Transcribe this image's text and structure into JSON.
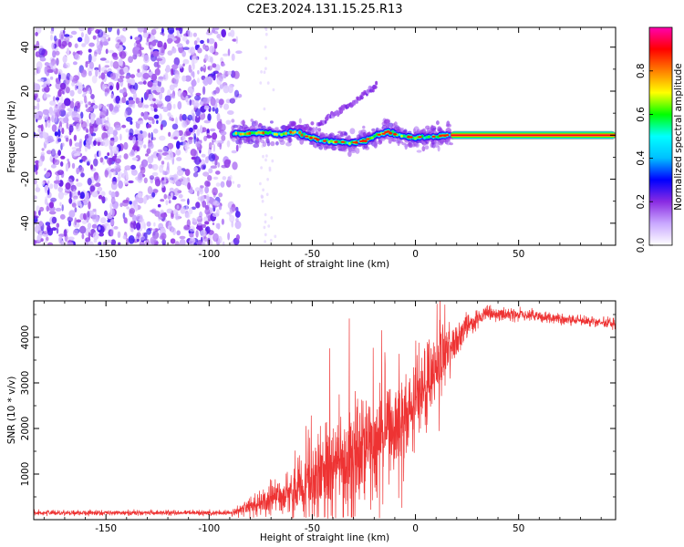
{
  "figure_title": "C2E3.2024.131.15.25.R13",
  "chart_data": [
    {
      "type": "heatmap",
      "xlabel": "Height of straight line (km)",
      "ylabel": "Frequency (Hz)",
      "xlim": [
        -185,
        97
      ],
      "ylim": [
        -50,
        49
      ],
      "xticks": [
        -150,
        -100,
        -50,
        0,
        50
      ],
      "yticks": [
        -40,
        -20,
        0,
        20,
        40
      ],
      "colorbar": {
        "label": "Normalized spectral amplitude",
        "range": [
          0,
          1
        ],
        "ticks": [
          0.0,
          0.2,
          0.4,
          0.6,
          0.8
        ],
        "tick_labels": [
          "0.0",
          "0.2",
          "0.4",
          "0.6",
          "0.8"
        ],
        "colors": [
          "#ffffff",
          "#c9a8ff",
          "#8a2be2",
          "#0000ff",
          "#00bfff",
          "#00ffff",
          "#00ff00",
          "#ffff00",
          "#ff7f00",
          "#ff0000",
          "#ff00b0"
        ]
      },
      "features": {
        "noise_region_x": [
          -185,
          -85
        ],
        "main_line": [
          {
            "x": -88,
            "f": 0.5
          },
          {
            "x": -80,
            "f": 0.8
          },
          {
            "x": -72,
            "f": 1.2
          },
          {
            "x": -66,
            "f": 0.3
          },
          {
            "x": -58,
            "f": 1.5
          },
          {
            "x": -52,
            "f": -0.5
          },
          {
            "x": -45,
            "f": -2.5
          },
          {
            "x": -38,
            "f": -3.2
          },
          {
            "x": -30,
            "f": -3.5
          },
          {
            "x": -24,
            "f": -2.2
          },
          {
            "x": -18,
            "f": 0.5
          },
          {
            "x": -13,
            "f": 1.5
          },
          {
            "x": -8,
            "f": 0.2
          },
          {
            "x": -3,
            "f": -1.0
          },
          {
            "x": 3,
            "f": -1.2
          },
          {
            "x": 10,
            "f": -0.5
          },
          {
            "x": 17,
            "f": 0.0
          },
          {
            "x": 95,
            "f": 0.0
          }
        ],
        "branch": [
          {
            "x": -48,
            "f": 4.0
          },
          {
            "x": -40,
            "f": 9.0
          },
          {
            "x": -32,
            "f": 13.5
          },
          {
            "x": -25,
            "f": 18.0
          },
          {
            "x": -19,
            "f": 22.5
          }
        ],
        "coherent_from_x": 17
      }
    },
    {
      "type": "line",
      "xlabel": "Height of straight line (km)",
      "ylabel": "SNR (10 * v/v)",
      "xlim": [
        -185,
        97
      ],
      "ylim": [
        0,
        4800
      ],
      "xticks": [
        -150,
        -100,
        -50,
        0,
        50
      ],
      "yticks": [
        1000,
        2000,
        3000,
        4000
      ],
      "color": "#ee3333",
      "trend": [
        {
          "x": -185,
          "y": 150
        },
        {
          "x": -90,
          "y": 150
        },
        {
          "x": -80,
          "y": 280
        },
        {
          "x": -70,
          "y": 450
        },
        {
          "x": -55,
          "y": 700
        },
        {
          "x": -45,
          "y": 1100
        },
        {
          "x": -35,
          "y": 1400
        },
        {
          "x": -25,
          "y": 1600
        },
        {
          "x": -15,
          "y": 1900
        },
        {
          "x": -5,
          "y": 2300
        },
        {
          "x": 5,
          "y": 2900
        },
        {
          "x": 15,
          "y": 3600
        },
        {
          "x": 25,
          "y": 4300
        },
        {
          "x": 35,
          "y": 4500
        },
        {
          "x": 50,
          "y": 4500
        },
        {
          "x": 70,
          "y": 4400
        },
        {
          "x": 97,
          "y": 4300
        }
      ],
      "spread": [
        {
          "x": -185,
          "s": 50
        },
        {
          "x": -90,
          "s": 50
        },
        {
          "x": -80,
          "s": 200
        },
        {
          "x": -60,
          "s": 450
        },
        {
          "x": -45,
          "s": 900
        },
        {
          "x": -30,
          "s": 1100
        },
        {
          "x": -15,
          "s": 900
        },
        {
          "x": 0,
          "s": 800
        },
        {
          "x": 12,
          "s": 700
        },
        {
          "x": 25,
          "s": 250
        },
        {
          "x": 40,
          "s": 130
        },
        {
          "x": 97,
          "s": 110
        }
      ]
    }
  ]
}
